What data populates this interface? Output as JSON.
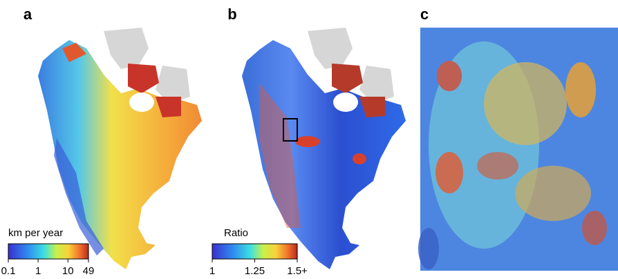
{
  "panels": [
    {
      "label": "a",
      "colorbar": {
        "title": "km per year",
        "scale": "log",
        "lim": [
          0.1,
          49
        ],
        "ticks": [
          0.1,
          1,
          10,
          49
        ]
      }
    },
    {
      "label": "b",
      "colorbar": {
        "title": "Ratio",
        "scale": "linear",
        "lim": [
          1,
          1.5
        ],
        "ticks": [
          1,
          1.25,
          {
            "value": 1.5,
            "label": "1.5+"
          }
        ]
      }
    },
    {
      "label": "c"
    }
  ]
}
